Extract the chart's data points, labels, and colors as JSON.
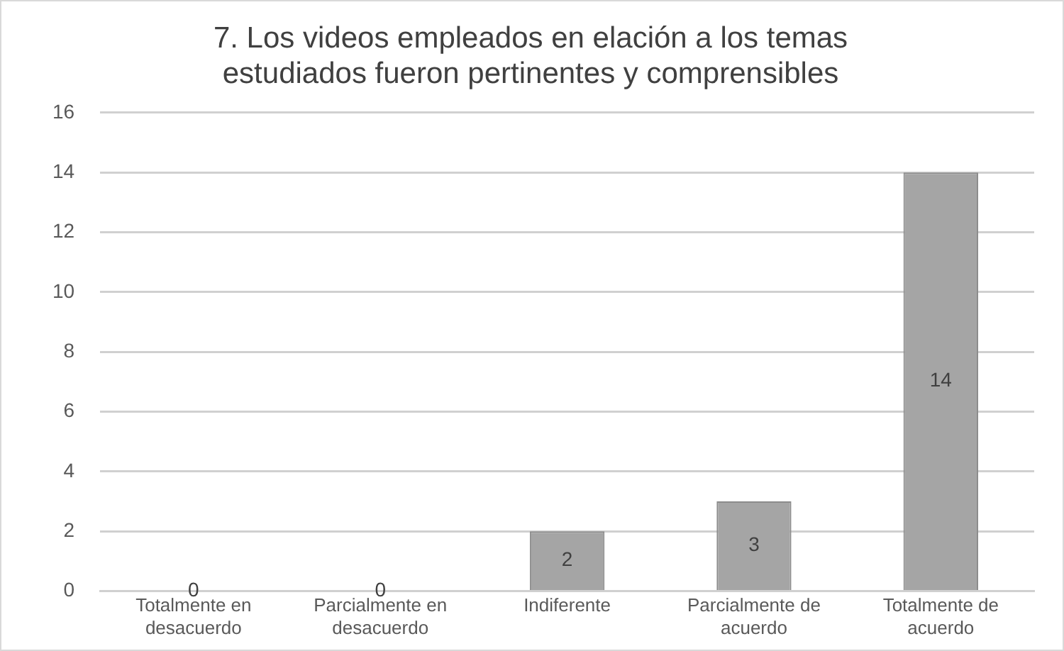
{
  "chart_data": {
    "type": "bar",
    "title": "7. Los videos empleados en elación a los temas estudiados fueron pertinentes y comprensibles",
    "categories": [
      "Totalmente en desacuerdo",
      "Parcialmente en desacuerdo",
      "Indiferente",
      "Parcialmente de acuerdo",
      "Totalmente de acuerdo"
    ],
    "values": [
      0,
      0,
      2,
      3,
      14
    ],
    "color": "#a5a5a5",
    "ylim": [
      0,
      16
    ],
    "yticks": [
      0,
      2,
      4,
      6,
      8,
      10,
      12,
      14,
      16
    ],
    "grid": "y",
    "data_labels": true
  }
}
